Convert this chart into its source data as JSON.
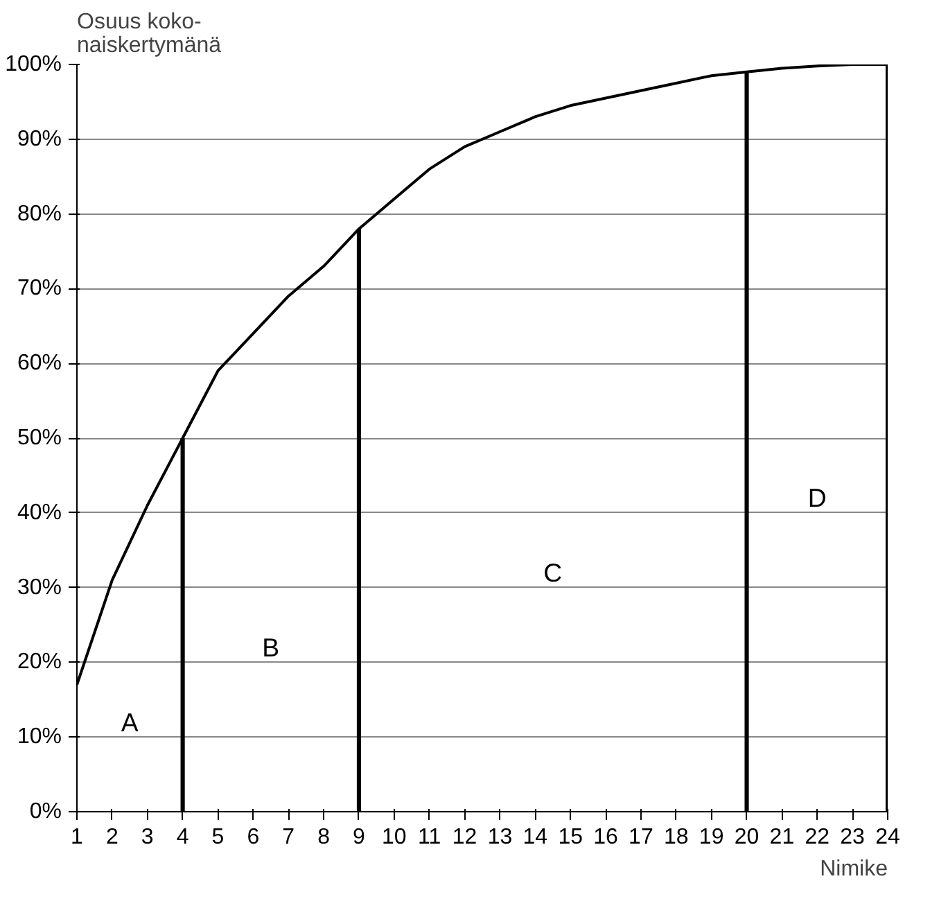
{
  "chart_data": {
    "type": "line",
    "xlabel": "Nimike",
    "ylabel": "Osuus koko-\nnaiskertymänä",
    "x": [
      1,
      2,
      3,
      4,
      5,
      6,
      7,
      8,
      9,
      10,
      11,
      12,
      13,
      14,
      15,
      16,
      17,
      18,
      19,
      20,
      21,
      22,
      23,
      24
    ],
    "series": [
      {
        "color": "#000000",
        "values": [
          17,
          31,
          41,
          50,
          59,
          64,
          69,
          73,
          78,
          82,
          86,
          89,
          91,
          93,
          94.5,
          95.5,
          96.5,
          97.5,
          98.5,
          99,
          99.5,
          99.8,
          100,
          100
        ]
      },
      {
        "type": "bar",
        "color": "#000000",
        "x": [
          4,
          9,
          20,
          24
        ],
        "values": [
          50,
          78,
          99,
          100
        ]
      }
    ],
    "xlim": [
      1,
      24
    ],
    "xticks": [
      1,
      2,
      3,
      4,
      5,
      6,
      7,
      8,
      9,
      10,
      11,
      12,
      13,
      14,
      15,
      16,
      17,
      18,
      19,
      20,
      21,
      22,
      23,
      24
    ],
    "ylim": [
      0,
      100
    ],
    "yticks": [
      {
        "value": 0,
        "label": "0%"
      },
      {
        "value": 10,
        "label": "10%"
      },
      {
        "value": 20,
        "label": "20%"
      },
      {
        "value": 30,
        "label": "30%"
      },
      {
        "value": 40,
        "label": "40%"
      },
      {
        "value": 50,
        "label": "50%"
      },
      {
        "value": 60,
        "label": "60%"
      },
      {
        "value": 70,
        "label": "70%"
      },
      {
        "value": 80,
        "label": "80%"
      },
      {
        "value": 90,
        "label": "90%"
      },
      {
        "value": 100,
        "label": "100%"
      }
    ],
    "grid": "y",
    "marker": "none",
    "line_style": "solid",
    "annotations": [
      "A",
      "B",
      "C",
      "D"
    ]
  }
}
